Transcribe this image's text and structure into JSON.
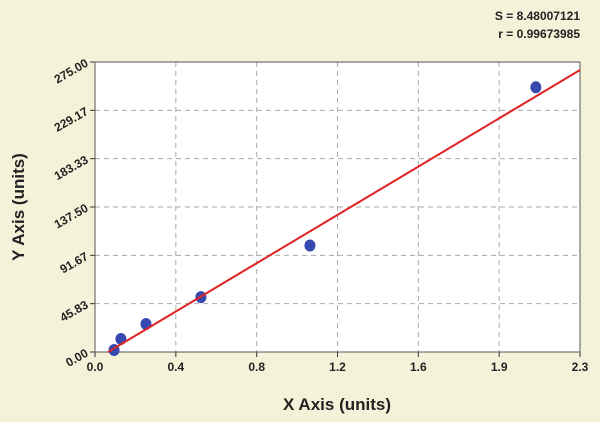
{
  "chart_data": {
    "type": "scatter",
    "stats": [
      "S = 8.48007121",
      "r = 0.99673985"
    ],
    "x_label": "X Axis (units)",
    "y_label": "Y Axis (units)",
    "xlim": [
      0,
      2.34
    ],
    "ylim": [
      0,
      275
    ],
    "xticks": [
      {
        "value": 0,
        "label": "0.0"
      },
      {
        "value": 0.39,
        "label": "0.4"
      },
      {
        "value": 0.78,
        "label": "0.8"
      },
      {
        "value": 1.17,
        "label": "1.2"
      },
      {
        "value": 1.56,
        "label": "1.6"
      },
      {
        "value": 1.95,
        "label": "1.9"
      },
      {
        "value": 2.34,
        "label": "2.3"
      }
    ],
    "yticks": [
      {
        "value": 0,
        "label": "0.00"
      },
      {
        "value": 45.83,
        "label": "45.83"
      },
      {
        "value": 91.67,
        "label": "91.67"
      },
      {
        "value": 137.5,
        "label": "137.50"
      },
      {
        "value": 183.33,
        "label": "183.33"
      },
      {
        "value": 229.17,
        "label": "229.17"
      },
      {
        "value": 275,
        "label": "275.00"
      }
    ],
    "grid": true,
    "series": [
      {
        "color": "#3549b0",
        "x": [
          0.092,
          0.125,
          0.246,
          0.511,
          1.037,
          2.127
        ],
        "values": [
          1.9,
          12.3,
          26.5,
          52,
          101,
          251
        ]
      }
    ],
    "fit": {
      "color": "#e02424",
      "x": [
        0.063,
        2.34
      ],
      "values": [
        0,
        267.4
      ]
    }
  }
}
